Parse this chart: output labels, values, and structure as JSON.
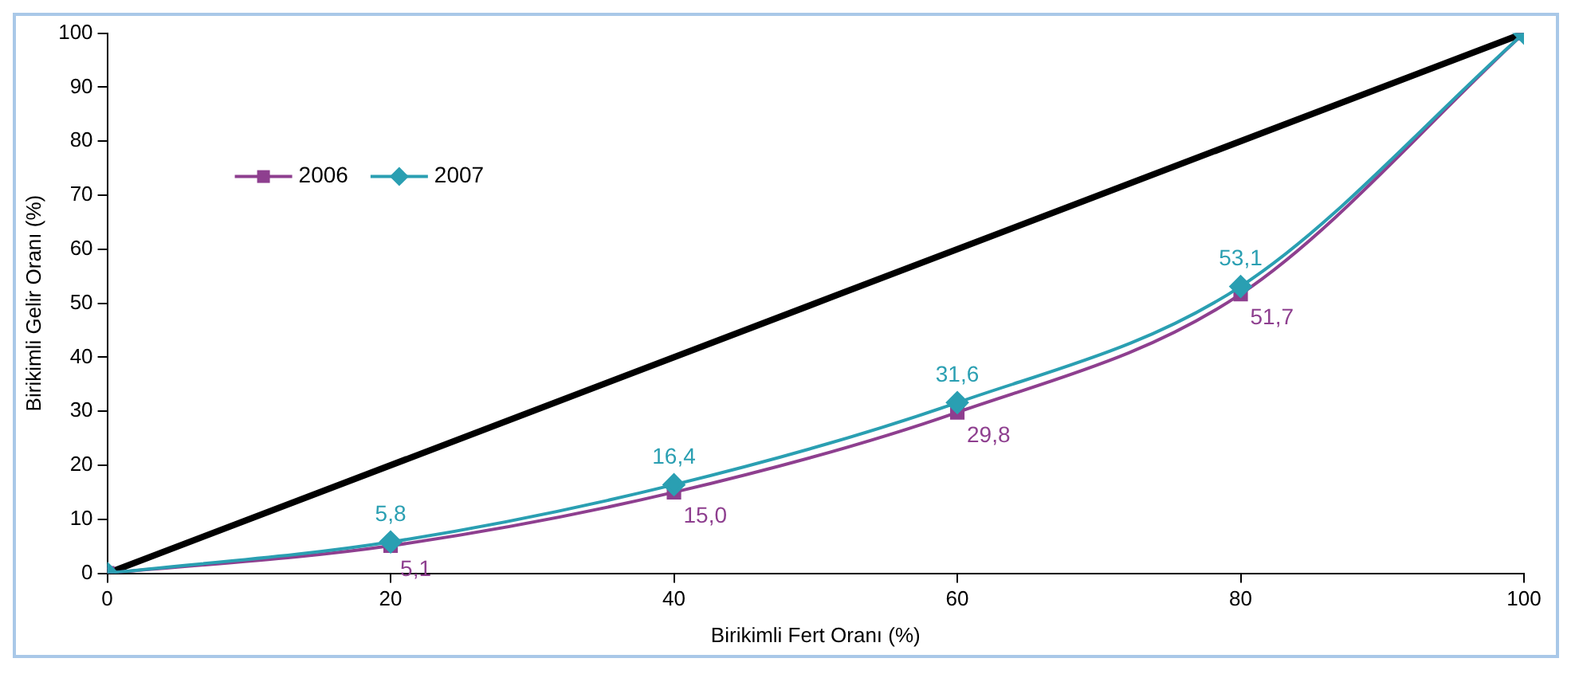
{
  "chart_data": {
    "type": "line",
    "xlabel": "Birikimli Fert Oranı (%)",
    "ylabel": "Birikimli Gelir Oranı (%)",
    "x": [
      0,
      20,
      40,
      60,
      80,
      100
    ],
    "xlim": [
      0,
      100
    ],
    "xticks": [
      0,
      20,
      40,
      60,
      80,
      100
    ],
    "ylim": [
      0,
      100
    ],
    "yticks": [
      0,
      10,
      20,
      30,
      40,
      50,
      60,
      70,
      80,
      90,
      100
    ],
    "grid": false,
    "legend": "top left",
    "series": [
      {
        "name": null,
        "color": "#000000",
        "x": [
          0,
          100
        ],
        "values": [
          0,
          100
        ],
        "marker": "none"
      },
      {
        "name": "2006",
        "color": "#8e3f8f",
        "values": [
          0,
          5.1,
          15.0,
          29.8,
          51.7,
          100
        ],
        "marker": "square",
        "value_labels": [
          null,
          "5,1",
          "15,0",
          "29,8",
          "51,7",
          null
        ]
      },
      {
        "name": "2007",
        "color": "#2a9fb2",
        "values": [
          0,
          5.8,
          16.4,
          31.6,
          53.1,
          100
        ],
        "marker": "diamond",
        "value_labels": [
          null,
          "5,8",
          "16,4",
          "31,6",
          "53,1",
          null
        ]
      }
    ]
  }
}
